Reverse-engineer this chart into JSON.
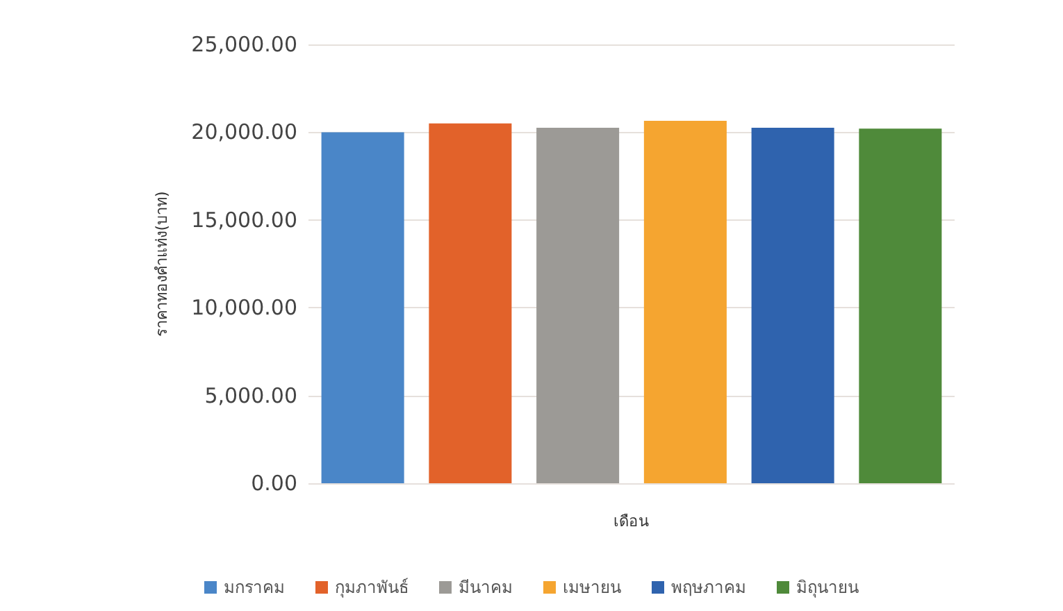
{
  "chart_data": {
    "type": "bar",
    "xlabel": "เดือน",
    "ylabel": "ราคาทองคำแท่ง(บาท)",
    "categories": [
      null
    ],
    "series": [
      {
        "name": "มกราคม",
        "color": "#4a86c8",
        "values": [
          20000
        ]
      },
      {
        "name": "กุมภาพันธ์",
        "color": "#e2622a",
        "values": [
          20500
        ]
      },
      {
        "name": "มีนาคม",
        "color": "#9c9a96",
        "values": [
          20250
        ]
      },
      {
        "name": "เมษายน",
        "color": "#f5a530",
        "values": [
          20650
        ]
      },
      {
        "name": "พฤษภาคม",
        "color": "#2f63ae",
        "values": [
          20250
        ]
      },
      {
        "name": "มิถุนายน",
        "color": "#4f8a3a",
        "values": [
          20200
        ]
      }
    ],
    "ylim": [
      0,
      25000
    ],
    "yticks": [
      {
        "value": 0,
        "label": "0.00"
      },
      {
        "value": 5000,
        "label": "5,000.00"
      },
      {
        "value": 10000,
        "label": "10,000.00"
      },
      {
        "value": 15000,
        "label": "15,000.00"
      },
      {
        "value": 20000,
        "label": "20,000.00"
      },
      {
        "value": 25000,
        "label": "25,000.00"
      }
    ],
    "grid": "y",
    "legend": "bottom"
  }
}
